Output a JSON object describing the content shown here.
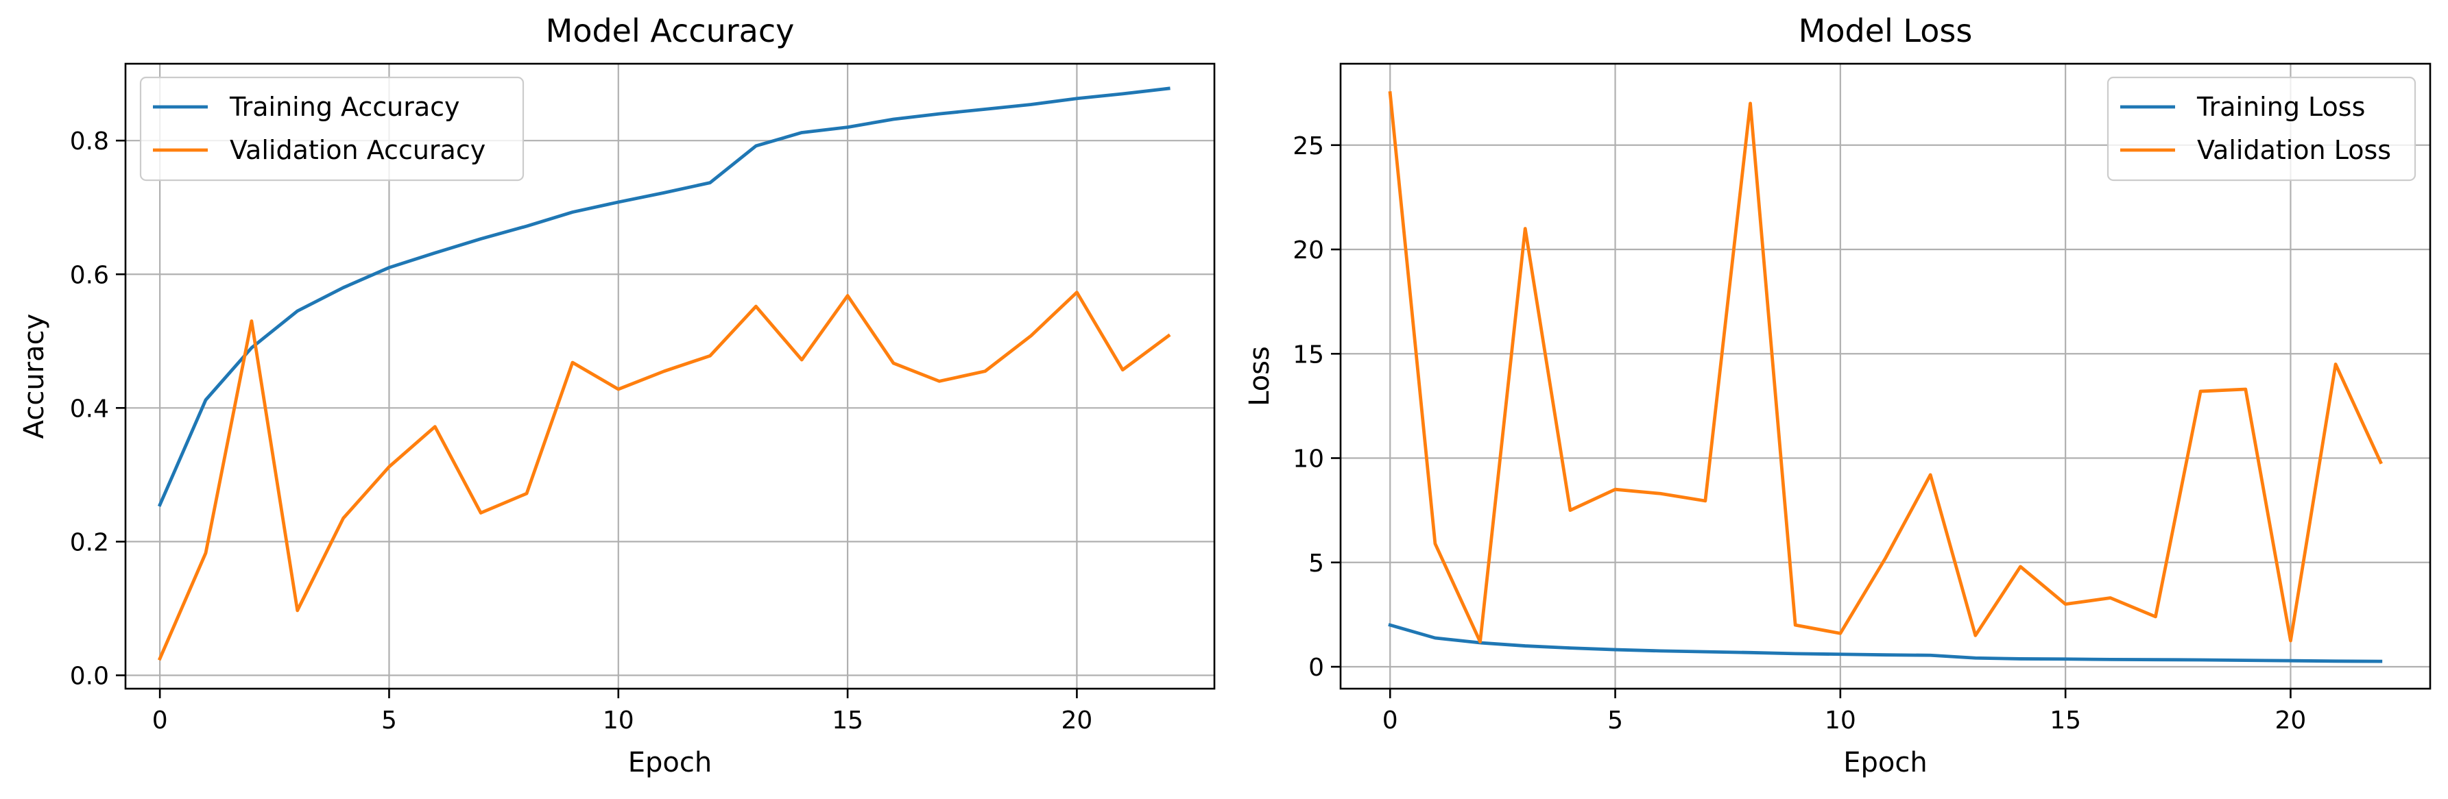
{
  "chart_data": [
    {
      "type": "line",
      "title": "Model Accuracy",
      "xlabel": "Epoch",
      "ylabel": "Accuracy",
      "xlim": [
        -0.75,
        23.0
      ],
      "ylim": [
        -0.02,
        0.915
      ],
      "xticks": [
        0,
        5,
        10,
        15,
        20
      ],
      "xtick_labels": [
        "0",
        "5",
        "10",
        "15",
        "20"
      ],
      "yticks": [
        0.0,
        0.2,
        0.4,
        0.6,
        0.8
      ],
      "ytick_labels": [
        "0.0",
        "0.2",
        "0.4",
        "0.6",
        "0.8"
      ],
      "grid": true,
      "legend_position": "top-left",
      "x": [
        0,
        1,
        2,
        3,
        4,
        5,
        6,
        7,
        8,
        9,
        10,
        11,
        12,
        13,
        14,
        15,
        16,
        17,
        18,
        19,
        20,
        21,
        22
      ],
      "series": [
        {
          "name": "Training Accuracy",
          "color": "#1f77b4",
          "values": [
            0.255,
            0.412,
            0.49,
            0.545,
            0.58,
            0.61,
            0.632,
            0.653,
            0.672,
            0.693,
            0.708,
            0.722,
            0.737,
            0.792,
            0.812,
            0.82,
            0.832,
            0.84,
            0.847,
            0.854,
            0.863,
            0.87,
            0.878
          ]
        },
        {
          "name": "Validation Accuracy",
          "color": "#ff7f0e",
          "values": [
            0.025,
            0.183,
            0.53,
            0.097,
            0.235,
            0.312,
            0.372,
            0.243,
            0.272,
            0.468,
            0.428,
            0.455,
            0.478,
            0.552,
            0.472,
            0.568,
            0.467,
            0.44,
            0.455,
            0.508,
            0.573,
            0.457,
            0.508
          ]
        }
      ]
    },
    {
      "type": "line",
      "title": "Model Loss",
      "xlabel": "Epoch",
      "ylabel": "Loss",
      "xlim": [
        -1.1,
        23.1
      ],
      "ylim": [
        -1.05,
        28.9
      ],
      "xticks": [
        0,
        5,
        10,
        15,
        20
      ],
      "xtick_labels": [
        "0",
        "5",
        "10",
        "15",
        "20"
      ],
      "yticks": [
        0,
        5,
        10,
        15,
        20,
        25
      ],
      "ytick_labels": [
        "0",
        "5",
        "10",
        "15",
        "20",
        "25"
      ],
      "grid": true,
      "legend_position": "top-right",
      "x": [
        0,
        1,
        2,
        3,
        4,
        5,
        6,
        7,
        8,
        9,
        10,
        11,
        12,
        13,
        14,
        15,
        16,
        17,
        18,
        19,
        20,
        21,
        22
      ],
      "series": [
        {
          "name": "Training Loss",
          "color": "#1f77b4",
          "values": [
            2.0,
            1.38,
            1.15,
            1.0,
            0.9,
            0.82,
            0.76,
            0.72,
            0.68,
            0.63,
            0.6,
            0.57,
            0.55,
            0.42,
            0.38,
            0.37,
            0.35,
            0.34,
            0.33,
            0.31,
            0.29,
            0.27,
            0.26
          ]
        },
        {
          "name": "Validation Loss",
          "color": "#ff7f0e",
          "values": [
            27.5,
            5.9,
            1.2,
            21.0,
            7.5,
            8.5,
            8.3,
            7.95,
            27.0,
            2.0,
            1.6,
            5.2,
            9.2,
            1.5,
            4.8,
            3.0,
            3.3,
            2.4,
            13.2,
            13.3,
            1.25,
            14.5,
            9.8
          ]
        }
      ]
    }
  ]
}
